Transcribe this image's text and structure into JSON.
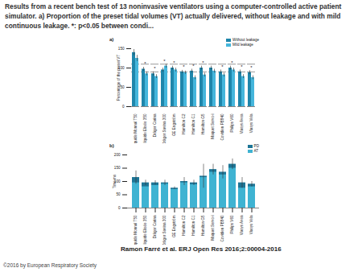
{
  "slide_title": "Results from a recent bench test of 13 noninvasive ventilators using a computer-controlled active patient simulator. a) Proportion of the preset tidal volumes (VT) actually delivered, without leakage and with mild continuous leakage. *: p<0.05 between condi...",
  "citation": "Ramon Farré et al. ERJ Open Res 2016;2:00004-2016",
  "copyright": "©2016 by European Respiratory Society",
  "chart_data": [
    {
      "type": "bar",
      "panel": "a)",
      "ylabel": "Percentage of the preset VT",
      "categories": [
        "Air liquide Monnal T50",
        "Air liquide Elisée 350",
        "Dräger Carina",
        "Dräger Savina 300",
        "GE Engström",
        "Hamilton C2",
        "Hamilton C1",
        "Hamilton G5",
        "Maquet Servo-i",
        "Covidien PB840",
        "Philips V60",
        "Viasys Avea",
        "Viasys Vela"
      ],
      "series": [
        {
          "name": "Without leakage",
          "color": "#1f86ab",
          "values": [
            140,
            97,
            85,
            95,
            100,
            90,
            92,
            100,
            100,
            90,
            100,
            90,
            88
          ],
          "errors": [
            8,
            5,
            5,
            5,
            5,
            4,
            5,
            5,
            5,
            5,
            5,
            5,
            5
          ]
        },
        {
          "name": "Mild leakage",
          "color": "#45b6dc",
          "values": [
            125,
            85,
            78,
            105,
            95,
            88,
            75,
            82,
            92,
            82,
            95,
            78,
            75
          ],
          "errors": [
            8,
            5,
            5,
            5,
            5,
            4,
            5,
            5,
            5,
            5,
            5,
            5,
            5
          ]
        }
      ],
      "significance": [
        null,
        "*",
        "*",
        "*",
        "*",
        "*",
        "*",
        "*",
        null,
        "*",
        "*",
        "*",
        "*"
      ],
      "reference_lines": [
        90,
        110
      ],
      "ylim": [
        0,
        150
      ],
      "yticks": [
        0,
        50,
        100,
        150
      ],
      "stacked": false,
      "legend": "top-right"
    },
    {
      "type": "bar",
      "panel": "b)",
      "ylabel": "Time ms",
      "categories": [
        "Air liquide Monnal T50",
        "Air liquide Elisée 350",
        "Dräger Carina",
        "Dräger Savina 300",
        "GE Engström",
        "Hamilton C2",
        "Hamilton C1",
        "Hamilton G5",
        "Maquet Servo-i",
        "Covidien PB840",
        "Philips V60",
        "Viasys Avea",
        "Viasys Vela"
      ],
      "series": [
        {
          "name": "PD",
          "color": "#1d7596",
          "values": [
            115,
            95,
            95,
            95,
            75,
            100,
            95,
            120,
            145,
            135,
            165,
            95,
            90
          ],
          "errors": [
            25,
            10,
            8,
            10,
            5,
            15,
            10,
            45,
            20,
            25,
            20,
            20,
            10
          ]
        },
        {
          "name": "AT",
          "color": "#3fb3d2",
          "values": [
            95,
            80,
            85,
            90,
            70,
            95,
            88,
            115,
            135,
            125,
            150,
            75,
            80
          ]
        }
      ],
      "ylim": [
        0,
        200
      ],
      "yticks": [
        0,
        50,
        100,
        150,
        200
      ],
      "stacked": false,
      "legend": "top-right"
    }
  ]
}
